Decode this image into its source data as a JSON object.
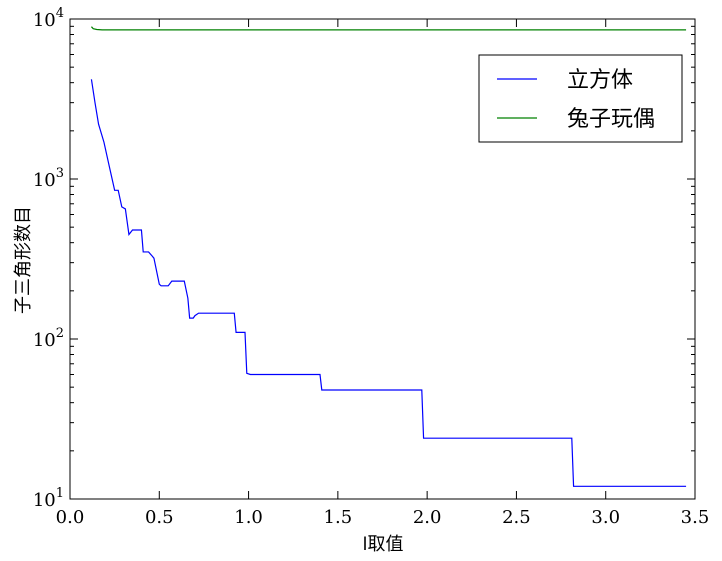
{
  "chart_data": {
    "type": "line",
    "title": "",
    "xlabel": "l取值",
    "ylabel": "子三角形数目",
    "xlim": [
      0.0,
      3.5
    ],
    "ylim": [
      10,
      10000
    ],
    "yscale": "log",
    "grid": false,
    "legend_position": "top-right",
    "xticks": [
      0.0,
      0.5,
      1.0,
      1.5,
      2.0,
      2.5,
      3.0,
      3.5
    ],
    "xtick_labels": [
      "0.0",
      "0.5",
      "1.0",
      "1.5",
      "2.0",
      "2.5",
      "3.0",
      "3.5"
    ],
    "yticks": [
      10,
      100,
      1000,
      10000
    ],
    "ytick_labels": [
      {
        "base": "10",
        "exp": "1"
      },
      {
        "base": "10",
        "exp": "2"
      },
      {
        "base": "10",
        "exp": "3"
      },
      {
        "base": "10",
        "exp": "4"
      }
    ],
    "series": [
      {
        "name": "立方体",
        "color": "#0000ff",
        "x": [
          0.12,
          0.14,
          0.16,
          0.19,
          0.22,
          0.25,
          0.27,
          0.29,
          0.31,
          0.33,
          0.35,
          0.38,
          0.4,
          0.41,
          0.44,
          0.46,
          0.47,
          0.5,
          0.51,
          0.55,
          0.57,
          0.59,
          0.64,
          0.66,
          0.67,
          0.69,
          0.7,
          0.72,
          0.73,
          0.85,
          0.92,
          0.93,
          0.97,
          0.98,
          0.99,
          1.01,
          1.4,
          1.41,
          1.42,
          1.97,
          1.98,
          1.99,
          2.81,
          2.82,
          3.45
        ],
        "y": [
          4200,
          3000,
          2200,
          1700,
          1200,
          850,
          850,
          670,
          650,
          450,
          480,
          480,
          480,
          350,
          350,
          330,
          320,
          220,
          215,
          215,
          230,
          230,
          230,
          180,
          135,
          135,
          140,
          145,
          145,
          145,
          145,
          110,
          110,
          110,
          61,
          60,
          60,
          48,
          48,
          48,
          24,
          24,
          24,
          12,
          12
        ]
      },
      {
        "name": "兔子玩偶",
        "color": "#008000",
        "x": [
          0.12,
          0.13,
          0.15,
          0.18,
          0.25,
          0.5,
          1.0,
          2.0,
          3.0,
          3.45
        ],
        "y": [
          8950,
          8700,
          8600,
          8550,
          8550,
          8550,
          8550,
          8550,
          8550,
          8550
        ]
      }
    ]
  }
}
